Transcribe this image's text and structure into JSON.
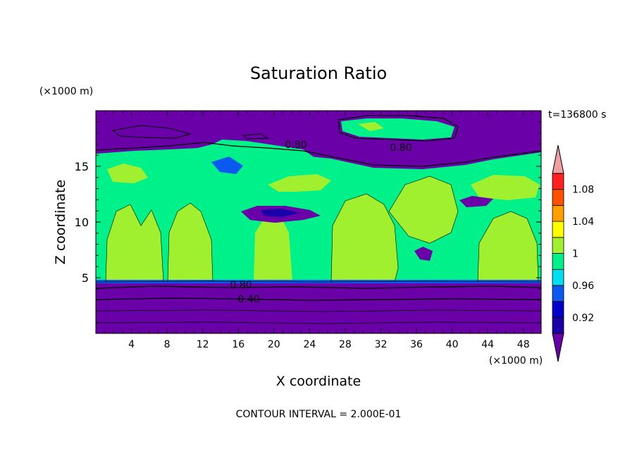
{
  "chart_data": {
    "type": "heatmap",
    "title": "Saturation Ratio",
    "xlabel": "X coordinate",
    "ylabel": "Z coordinate",
    "x_unit": "(×1000 m)",
    "y_unit": "(×1000 m)",
    "time_label": "t=136800 s",
    "footer": "CONTOUR INTERVAL = 2.000E-01",
    "xlim": [
      0,
      50
    ],
    "ylim": [
      0,
      20
    ],
    "x_ticks": [
      "4",
      "8",
      "12",
      "16",
      "20",
      "24",
      "28",
      "32",
      "36",
      "40",
      "44",
      "48"
    ],
    "y_ticks": [
      "5",
      "10",
      "15"
    ],
    "contour_labels": [
      {
        "text": "0.80",
        "x": 22,
        "z": 17.3
      },
      {
        "text": "0.80",
        "x": 34,
        "z": 16.7
      },
      {
        "text": "0.80",
        "x": 16,
        "z": 4.4
      },
      {
        "text": "0.40",
        "x": 16,
        "z": 3.1
      }
    ],
    "colorbar": {
      "labels": [
        "1.08",
        "1.04",
        "1",
        "0.96",
        "0.92"
      ],
      "levels": [
        0.9,
        0.92,
        0.94,
        0.96,
        0.98,
        1.0,
        1.02,
        1.04,
        1.06,
        1.08,
        1.1
      ],
      "colors": [
        "#6a00a8",
        "#1a00a8",
        "#0000c8",
        "#0a5af0",
        "#00e0f0",
        "#00f08a",
        "#a0f030",
        "#ffff00",
        "#ffa000",
        "#ff5000",
        "#ff2020",
        "#f0a0a0"
      ]
    }
  }
}
